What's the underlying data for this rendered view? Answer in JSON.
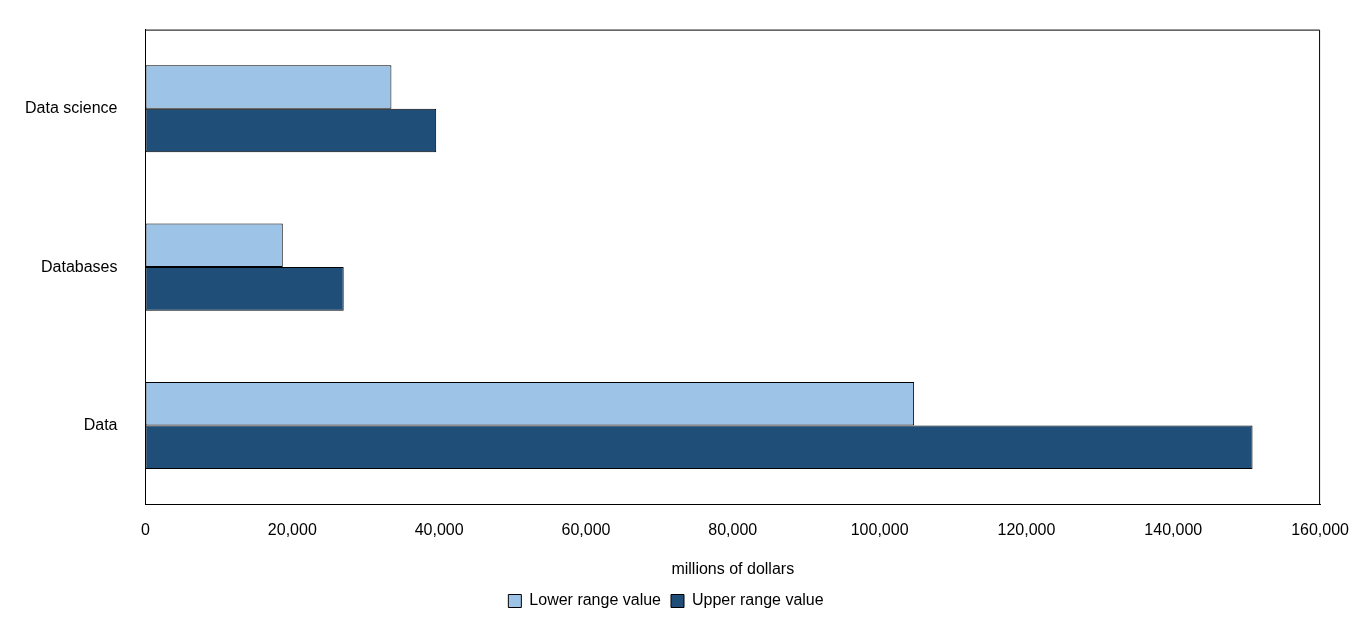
{
  "chart_data": {
    "type": "bar",
    "orientation": "horizontal",
    "xlabel": "millions of dollars",
    "categories": [
      "Data science",
      "Databases",
      "Data"
    ],
    "series": [
      {
        "name": "Lower range value",
        "color": "#9dc3e6",
        "values": [
          33500,
          18700,
          104700
        ]
      },
      {
        "name": "Upper range value",
        "color": "#1f4e79",
        "values": [
          39600,
          27000,
          150800
        ]
      }
    ],
    "xlim": [
      0,
      160000
    ],
    "xticks": [
      {
        "value": 0,
        "label": "0"
      },
      {
        "value": 20000,
        "label": "20,000"
      },
      {
        "value": 40000,
        "label": "40,000"
      },
      {
        "value": 60000,
        "label": "60,000"
      },
      {
        "value": 80000,
        "label": "80,000"
      },
      {
        "value": 100000,
        "label": "100,000"
      },
      {
        "value": 120000,
        "label": "120,000"
      },
      {
        "value": 140000,
        "label": "140,000"
      },
      {
        "value": 160000,
        "label": "160,000"
      }
    ],
    "grid": false,
    "legend": "bottom"
  }
}
